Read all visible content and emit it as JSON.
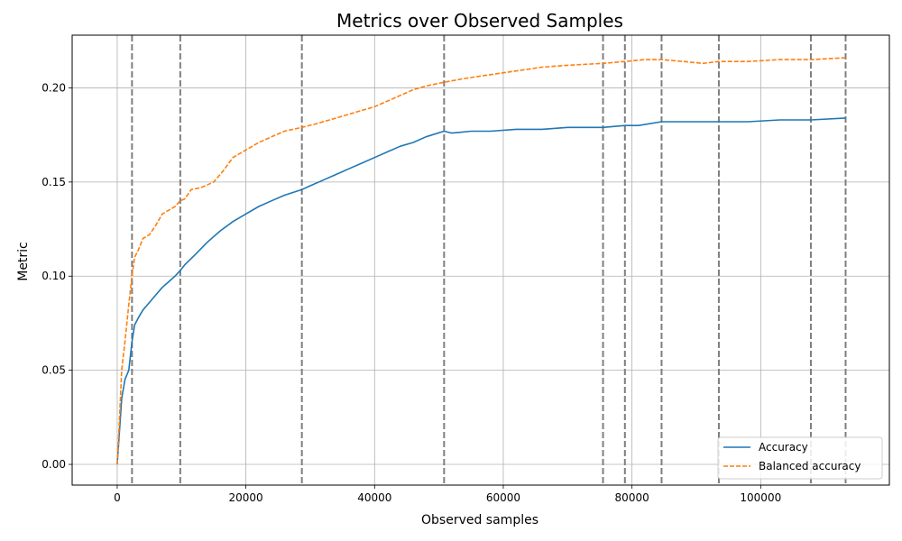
{
  "chart_data": {
    "type": "line",
    "title": "Metrics over Observed Samples",
    "xlabel": "Observed samples",
    "ylabel": "Metric",
    "xlim": [
      -7000,
      120000
    ],
    "ylim": [
      -0.011,
      0.228
    ],
    "xticks": [
      0,
      20000,
      40000,
      60000,
      80000,
      100000
    ],
    "yticks": [
      0.0,
      0.05,
      0.1,
      0.15,
      0.2
    ],
    "ytick_labels": [
      "0.00",
      "0.05",
      "0.10",
      "0.15",
      "0.20"
    ],
    "grid": true,
    "legend_position": "lower-right",
    "vlines": [
      2300,
      9800,
      28700,
      50800,
      75500,
      78900,
      84600,
      93500,
      107800,
      113200
    ],
    "series": [
      {
        "name": "Accuracy",
        "color": "#1f77b4",
        "style": "solid",
        "x": [
          0,
          300,
          700,
          1200,
          1800,
          2300,
          2700,
          3300,
          4000,
          5000,
          6000,
          7000,
          8000,
          9000,
          9800,
          10500,
          12000,
          14000,
          16000,
          18000,
          20000,
          22000,
          24000,
          26000,
          28700,
          30000,
          32000,
          34000,
          36000,
          38000,
          40000,
          42000,
          44000,
          46000,
          48000,
          50800,
          52000,
          55000,
          58000,
          62000,
          66000,
          70000,
          75500,
          78900,
          81000,
          84600,
          88000,
          93500,
          98000,
          103000,
          107800,
          113200
        ],
        "y": [
          0.0,
          0.015,
          0.035,
          0.045,
          0.05,
          0.065,
          0.074,
          0.078,
          0.082,
          0.086,
          0.09,
          0.094,
          0.097,
          0.1,
          0.103,
          0.106,
          0.111,
          0.118,
          0.124,
          0.129,
          0.133,
          0.137,
          0.14,
          0.143,
          0.146,
          0.148,
          0.151,
          0.154,
          0.157,
          0.16,
          0.163,
          0.166,
          0.169,
          0.171,
          0.174,
          0.177,
          0.176,
          0.177,
          0.177,
          0.178,
          0.178,
          0.179,
          0.179,
          0.18,
          0.18,
          0.182,
          0.182,
          0.182,
          0.182,
          0.183,
          0.183,
          0.184
        ]
      },
      {
        "name": "Balanced accuracy",
        "color": "#ff7f0e",
        "style": "dashed",
        "x": [
          0,
          300,
          700,
          1200,
          1800,
          2300,
          2700,
          3300,
          4000,
          5000,
          6000,
          7000,
          8000,
          9000,
          9800,
          10500,
          11500,
          13000,
          15000,
          16500,
          18000,
          20000,
          22000,
          24000,
          26000,
          28700,
          31000,
          33000,
          36000,
          38000,
          40000,
          42000,
          44000,
          46000,
          48000,
          50800,
          54000,
          58000,
          62000,
          66000,
          70000,
          75500,
          78900,
          82000,
          84600,
          88000,
          91000,
          93500,
          98000,
          103000,
          107800,
          113200
        ],
        "y": [
          0.0,
          0.02,
          0.05,
          0.065,
          0.085,
          0.1,
          0.11,
          0.114,
          0.12,
          0.122,
          0.127,
          0.133,
          0.135,
          0.137,
          0.14,
          0.141,
          0.146,
          0.147,
          0.15,
          0.156,
          0.163,
          0.167,
          0.171,
          0.174,
          0.177,
          0.179,
          0.181,
          0.183,
          0.186,
          0.188,
          0.19,
          0.193,
          0.196,
          0.199,
          0.201,
          0.203,
          0.205,
          0.207,
          0.209,
          0.211,
          0.212,
          0.213,
          0.214,
          0.215,
          0.215,
          0.214,
          0.213,
          0.214,
          0.214,
          0.215,
          0.215,
          0.216
        ]
      }
    ]
  }
}
